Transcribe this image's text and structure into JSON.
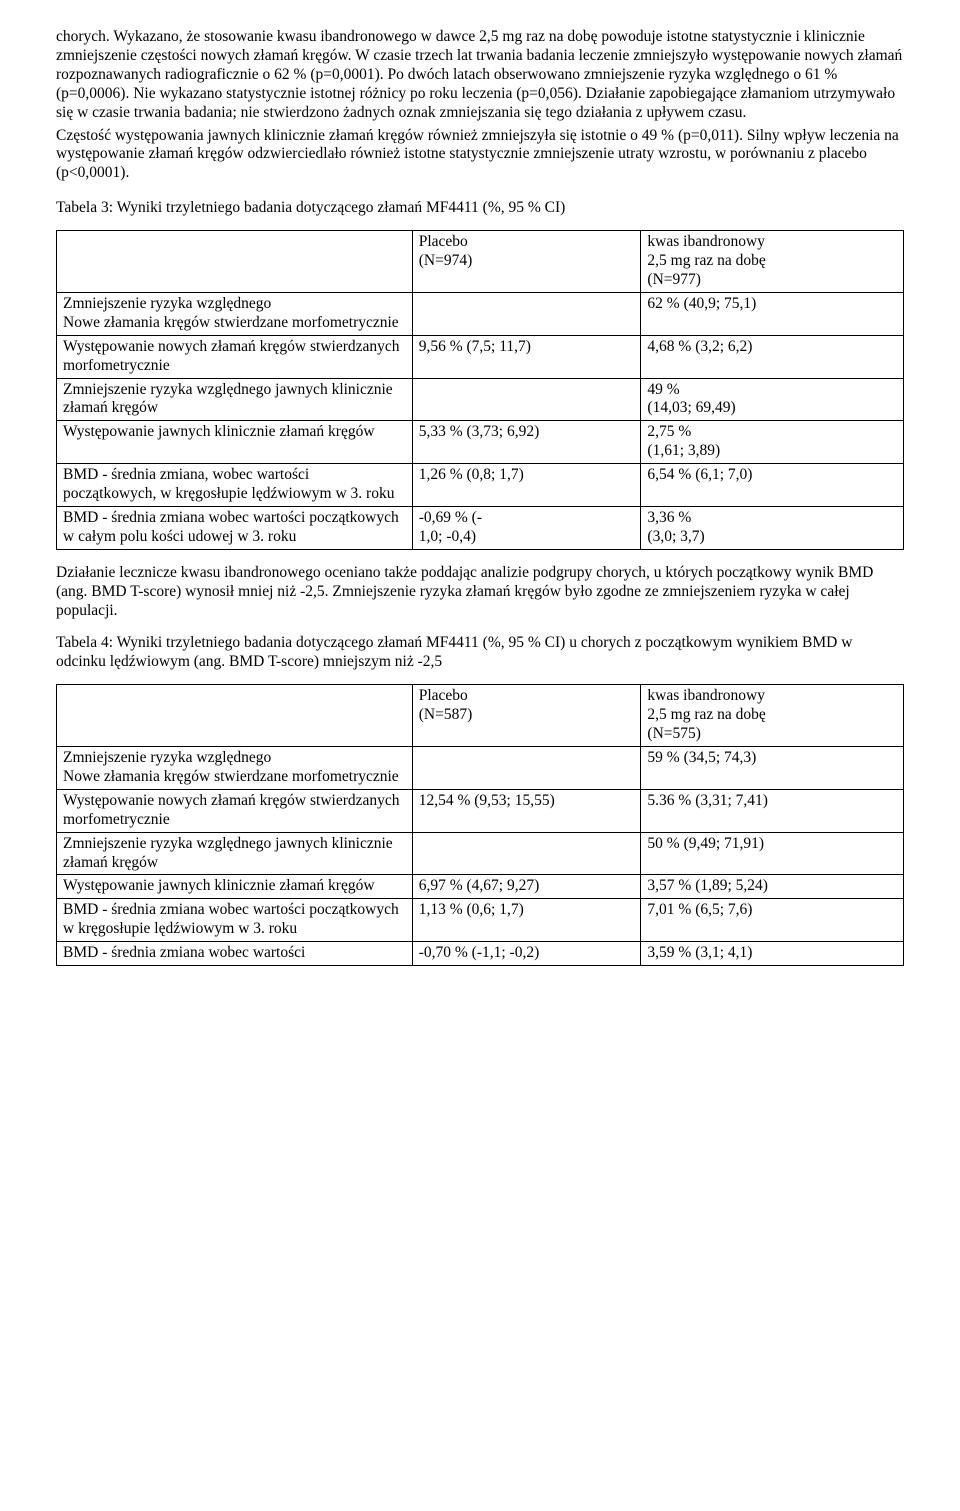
{
  "intro": {
    "p1": "chorych. Wykazano, że stosowanie kwasu ibandronowego w dawce 2,5 mg raz na dobę powoduje istotne statystycznie i klinicznie zmniejszenie częstości nowych złamań kręgów. W czasie trzech lat trwania badania leczenie zmniejszyło występowanie nowych złamań rozpoznawanych radiograficznie o 62 % (p=0,0001). Po dwóch latach obserwowano zmniejszenie ryzyka względnego o 61 % (p=0,0006). Nie wykazano statystycznie istotnej różnicy po roku leczenia (p=0,056). Działanie zapobiegające złamaniom utrzymywało się w czasie trwania badania; nie stwierdzono żadnych oznak zmniejszania się tego działania z upływem czasu.",
    "p2": "Częstość występowania jawnych klinicznie złamań kręgów również zmniejszyła się istotnie o 49 % (p=0,011). Silny wpływ leczenia na występowanie złamań kręgów odzwierciedlało również istotne statystycznie zmniejszenie utraty wzrostu, w porównaniu z placebo (p<0,0001)."
  },
  "table3": {
    "title": "Tabela 3: Wyniki trzyletniego badania dotyczącego złamań MF4411 (%, 95 % CI)",
    "headerPlacebo": "Placebo\n(N=974)",
    "headerDrug": "kwas ibandronowy\n2,5 mg raz na dobę\n(N=977)",
    "rows": [
      {
        "label": "Zmniejszenie ryzyka względnego\nNowe złamania kręgów stwierdzane morfometrycznie",
        "placebo": "",
        "drug": "62 % (40,9; 75,1)"
      },
      {
        "label": "Występowanie nowych złamań kręgów stwierdzanych morfometrycznie",
        "placebo": "9,56 % (7,5; 11,7)",
        "drug": "4,68 % (3,2; 6,2)"
      },
      {
        "label": "Zmniejszenie ryzyka względnego jawnych klinicznie złamań kręgów",
        "placebo": "",
        "drug": "49 %\n(14,03; 69,49)"
      },
      {
        "label": "Występowanie jawnych klinicznie złamań kręgów",
        "placebo": "5,33 % (3,73; 6,92)",
        "drug": "2,75 %\n(1,61; 3,89)"
      },
      {
        "label": "BMD - średnia zmiana, wobec wartości początkowych, w kręgosłupie lędźwiowym w 3. roku",
        "placebo": "1,26 % (0,8; 1,7)",
        "drug": "6,54 % (6,1; 7,0)"
      },
      {
        "label": "BMD - średnia zmiana wobec wartości początkowych w całym polu kości udowej w 3. roku",
        "placebo": "-0,69 % (-\n1,0; -0,4)",
        "drug": "3,36 %\n(3,0; 3,7)"
      }
    ]
  },
  "mid": {
    "p1": "Działanie lecznicze kwasu ibandronowego oceniano także poddając analizie podgrupy chorych, u których początkowy wynik BMD (ang. BMD T-score) wynosił mniej niż -2,5. Zmniejszenie ryzyka złamań kręgów było zgodne ze zmniejszeniem ryzyka w całej populacji."
  },
  "table4": {
    "title": "Tabela 4: Wyniki trzyletniego badania dotyczącego złamań MF4411 (%, 95 % CI) u chorych z początkowym wynikiem BMD w odcinku lędźwiowym (ang. BMD T-score) mniejszym niż -2,5",
    "headerPlacebo": "Placebo\n(N=587)",
    "headerDrug": "kwas ibandronowy\n2,5 mg raz na dobę\n(N=575)",
    "rows": [
      {
        "label": "Zmniejszenie ryzyka względnego\nNowe złamania kręgów stwierdzane morfometrycznie",
        "placebo": "",
        "drug": "59 % (34,5; 74,3)"
      },
      {
        "label": "Występowanie nowych złamań kręgów stwierdzanych morfometrycznie",
        "placebo": "12,54 % (9,53; 15,55)",
        "drug": "5.36 % (3,31; 7,41)"
      },
      {
        "label": "Zmniejszenie ryzyka względnego jawnych klinicznie złamań kręgów",
        "placebo": "",
        "drug": "50 % (9,49; 71,91)"
      },
      {
        "label": "Występowanie jawnych klinicznie złamań kręgów",
        "placebo": "6,97 % (4,67; 9,27)",
        "drug": "3,57 % (1,89; 5,24)"
      },
      {
        "label": "BMD - średnia zmiana wobec wartości początkowych w kręgosłupie lędźwiowym w 3. roku",
        "placebo": "1,13 % (0,6; 1,7)",
        "drug": "7,01 % (6,5; 7,6)"
      },
      {
        "label": "BMD - średnia zmiana wobec wartości",
        "placebo": "-0,70 % (-1,1; -0,2)",
        "drug": "3,59 % (3,1; 4,1)"
      }
    ]
  }
}
